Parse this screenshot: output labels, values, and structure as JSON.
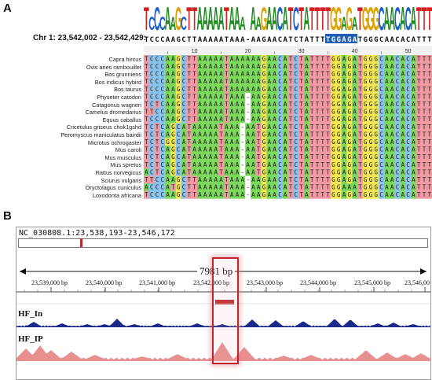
{
  "panels": {
    "a": {
      "label": "A",
      "logo_text": "TCCCAAGCTTAAAAATAAA-AAGAACATCTATTTTGGAGATGGGCAACACATTT",
      "ref": {
        "label": "Chr 1: 23,542,002 - 23,542,429:",
        "sequence": "TCCCAAGCTTAAAAATAAA-AAGAACATCTATTTTGGAGATGGGCAACACATTTT",
        "highlight": "TGGAGA",
        "highlight_start": 34
      },
      "ruler_ticks": [
        "10",
        "20",
        "30",
        "40",
        "50"
      ],
      "species": [
        {
          "name": "Capra hircus",
          "seq": "TCCCAAGCTTAAAAATAAAAAAGAACATCTATTTTGGAGATGGGCAACACATTT-"
        },
        {
          "name": "Ovis aries rambouillet",
          "seq": "TCCCAAGCTTAAAAATAAAAAAGAACATCTATTTTGGAGATGGGCAACACATTT-"
        },
        {
          "name": "Bos grunniens",
          "seq": "TCCCAAGCTTAAAAATAAAAAAGAACATCTATTTTGGAGATGGGCAACACATTT-"
        },
        {
          "name": "Bos indicus hybird",
          "seq": "TCCCAAGCTTAAAAATAAAAAAGAACATCTATTTTGGAGATGGGCAACACATTT-"
        },
        {
          "name": "Bos taurus",
          "seq": "TCCCAAGCTTAAAAATAAAAAAGAACATCTATTTTGGAGATGGGCAACACATTT-"
        },
        {
          "name": "Physeter catodon",
          "seq": "TCCCAAGCTTAAAAATAAA-AAGAACATCTATTTTGGAGATGGGCAACACATTT-"
        },
        {
          "name": "Catagonus wagneri",
          "seq": "TCTCAAGCTTAAAAATAAA-AAGAACATCTATTTTGGAGATGGGCAACACATTT-"
        },
        {
          "name": "Camelus dromedarius",
          "seq": "TTCCAAGCTTAAAAATAAA-AAGAACATCTATTTTGGAGATGGGCAACACATTT-"
        },
        {
          "name": "Equus caballus",
          "seq": "TCCCAAGCTTAAAAATAAA-AAGAACATCTATTTTGGAGATGGGCAACACATTT-"
        },
        {
          "name": "Cricetulus griseus chok1gshd",
          "seq": "TCTCAGCATAAAAATAAA-AATGAACATCTATTTTGGAGATGGGCAACACATTTT"
        },
        {
          "name": "Peromyscus maniculatus bairdii",
          "seq": "TCTCAGCATAAAAATAAA-AATGAACATCTATTTTGGAGATGGGCAACACATTTT"
        },
        {
          "name": "Microtus ochrogaster",
          "seq": "TCTCGGCATAAAAATAAA-AATGAACATCTATTTTGGAGATGGGCAACACATTTT"
        },
        {
          "name": "Mus caroli",
          "seq": "TCTCAGCATAAAAATAAA-AATGAACATCTATTTTGGAGATGGGCAACACATTTT"
        },
        {
          "name": "Mus musculus",
          "seq": "TCTCAGCATAAAAATAAA-AATGAACATCTATTTTGGAGATGGGCAACACATTTT"
        },
        {
          "name": "Mus spretus",
          "seq": "TCTCAGCATAAAAATAAA-AATGAACATCTATTTTGGAGATGGGCAACACATTTT"
        },
        {
          "name": "Rattus norvegicus",
          "seq": "ACTCAGCATAAAAATAAA-AATGAACATCTATTTTGGAGATGGGCAACACATTTT"
        },
        {
          "name": "Sciurus vulgaris",
          "seq": "TTCCAAGCTTAAAAATAAA-AAGAACATCTATTTTGGAGATGGGCAACACATTT-"
        },
        {
          "name": "Oryctolagus cuniculus",
          "seq": "ACCCATGCTTAAAAATAAA-AAGAACATCTATTTTGGAAATGGGCAACACATTT-"
        },
        {
          "name": "Loxodonta africana",
          "seq": "TCCCAAGCTTAAAAATAAA-AAGAACATCTATTTTGGAGATGGGCAACACATTT-"
        }
      ]
    },
    "b": {
      "label": "B",
      "locus": "NC_030808.1:23,538,193-23,546,172",
      "span": "7981 bp",
      "axis_ticks": [
        "23,539,000 bp",
        "23,540,000 bp",
        "23,541,000 bp",
        "23,542,000 bp",
        "23,543,000 bp",
        "23,544,000 bp",
        "23,545,000 bp",
        "23,546,00"
      ],
      "tracks": [
        {
          "label": "HF_In",
          "color": "#1b2a8a"
        },
        {
          "label": "HF_IP",
          "color": "#e89090"
        }
      ]
    }
  },
  "colors": {
    "A": "#7cd95c",
    "C": "#89c3ee",
    "G": "#f3e655",
    "T": "#f199a3",
    "highlight": "#1f5fb5",
    "selection": "#c0272d"
  }
}
